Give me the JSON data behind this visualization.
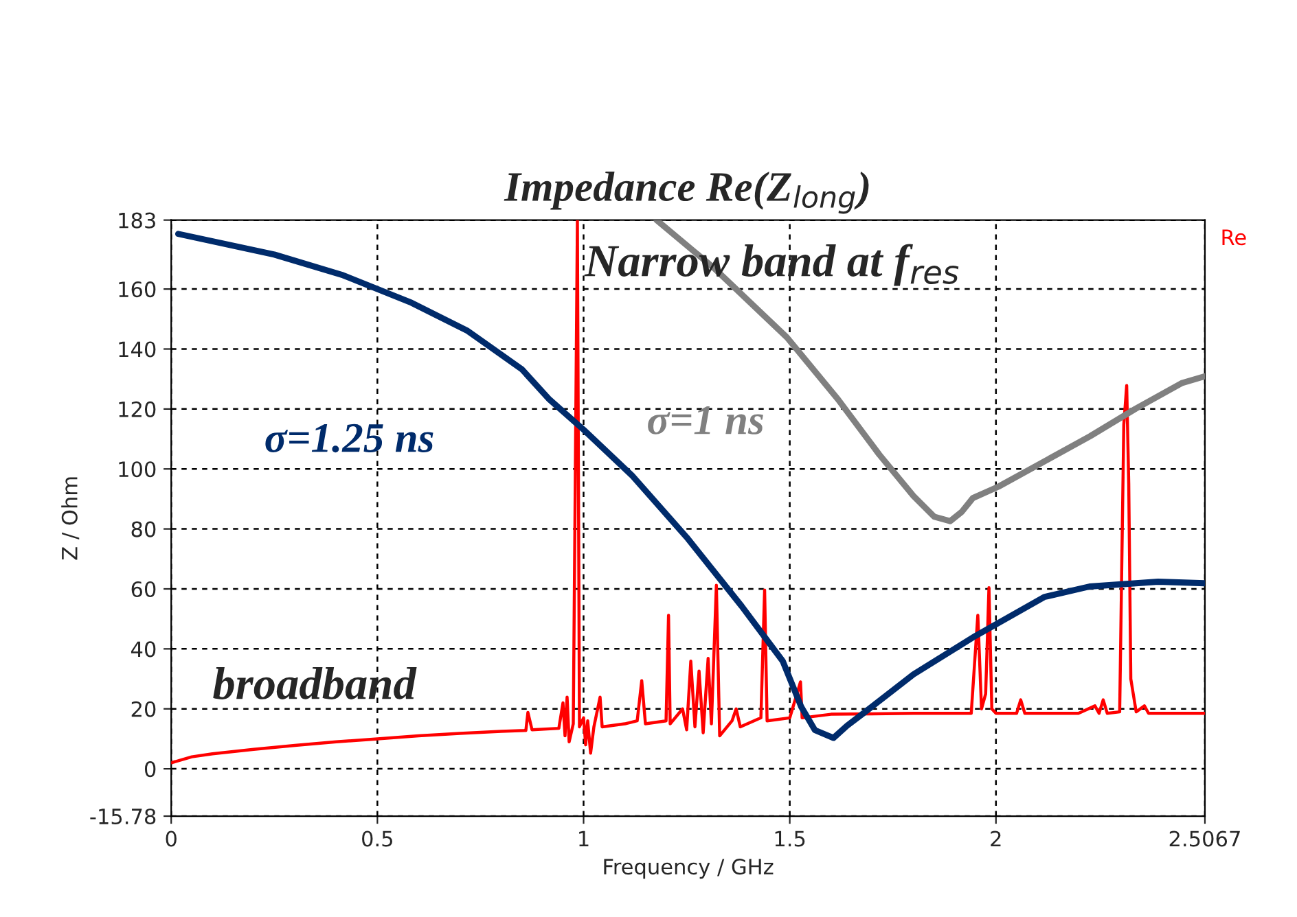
{
  "chart_data": {
    "type": "line",
    "title": "Impedance Re(Z$_{long}$)",
    "xlabel": "Frequency / GHz",
    "ylabel": "Z / Ohm",
    "xlim": [
      0,
      2.5067
    ],
    "ylim": [
      -15.78,
      183
    ],
    "xticks": [
      0,
      0.5,
      1,
      1.5,
      2,
      2.5067
    ],
    "yticks": [
      -15.78,
      0,
      20,
      40,
      60,
      80,
      100,
      120,
      140,
      160,
      183
    ],
    "grid": true,
    "marker": "none",
    "line_style": "solid",
    "annotations": [
      "Narrow band at f$_{res}$",
      "broadband"
    ],
    "series": [
      {
        "name": "Re",
        "color": "#ff0000",
        "x": [
          0,
          0.05,
          0.1,
          0.2,
          0.3,
          0.4,
          0.5,
          0.6,
          0.7,
          0.8,
          0.86,
          0.865,
          0.875,
          0.94,
          0.95,
          0.955,
          0.96,
          0.965,
          0.975,
          0.985,
          0.99,
          1.0,
          1.005,
          1.01,
          1.017,
          1.025,
          1.04,
          1.045,
          1.1,
          1.13,
          1.141,
          1.15,
          1.2,
          1.206,
          1.21,
          1.24,
          1.25,
          1.26,
          1.27,
          1.28,
          1.29,
          1.302,
          1.31,
          1.322,
          1.33,
          1.36,
          1.37,
          1.38,
          1.43,
          1.439,
          1.445,
          1.5,
          1.526,
          1.53,
          1.6,
          1.8,
          1.94,
          1.956,
          1.965,
          1.975,
          1.983,
          1.99,
          2.0,
          2.05,
          2.06,
          2.07,
          2.2,
          2.24,
          2.25,
          2.26,
          2.27,
          2.3,
          2.31,
          2.317,
          2.322,
          2.327,
          2.34,
          2.36,
          2.37,
          2.5067
        ],
        "values": [
          2,
          4,
          5,
          6.5,
          7.8,
          9,
          10,
          11,
          11.8,
          12.5,
          12.8,
          18.8,
          13,
          13.5,
          22,
          11,
          23.9,
          9,
          15,
          183,
          14,
          17,
          8,
          16,
          5.2,
          14,
          23.9,
          14,
          15,
          16,
          29.4,
          15,
          16,
          51.2,
          15,
          20,
          13,
          35.9,
          14,
          32.6,
          12,
          36.8,
          15,
          61.2,
          11,
          16,
          20,
          14,
          17,
          59.6,
          16,
          17,
          29,
          17,
          18.2,
          18.5,
          18.5,
          51.2,
          20,
          25,
          60.4,
          20,
          18.5,
          18.5,
          23,
          18.5,
          18.5,
          21,
          18.5,
          23,
          18.5,
          19,
          114.8,
          127.8,
          95,
          30,
          19,
          21,
          18.5,
          18.5
        ]
      },
      {
        "name": "σ=1.25 ns",
        "color": "#002b6b",
        "x": [
          0.017,
          0.25,
          0.417,
          0.583,
          0.717,
          0.85,
          0.917,
          1.0,
          1.117,
          1.25,
          1.383,
          1.483,
          1.528,
          1.561,
          1.606,
          1.639,
          1.683,
          1.8,
          1.95,
          2.117,
          2.227,
          2.393,
          2.5067
        ],
        "values": [
          178.4,
          171.5,
          164.6,
          155.4,
          146.2,
          133.3,
          123.2,
          113.1,
          97.9,
          77.2,
          54.3,
          35.9,
          20.6,
          12.9,
          10.3,
          14.4,
          19.0,
          31.5,
          44.3,
          57.3,
          60.8,
          62.4,
          61.9
        ]
      },
      {
        "name": "σ=1 ns",
        "color": "#808080",
        "x": [
          1.177,
          1.317,
          1.493,
          1.617,
          1.717,
          1.8,
          1.85,
          1.889,
          1.917,
          1.944,
          2.006,
          2.117,
          2.228,
          2.339,
          2.45,
          2.5067
        ],
        "values": [
          183,
          166.9,
          143.9,
          123.2,
          104.8,
          91,
          84.1,
          82.6,
          85.7,
          90.3,
          94.1,
          102.5,
          110.9,
          120.1,
          128.6,
          130.9
        ]
      }
    ]
  }
}
